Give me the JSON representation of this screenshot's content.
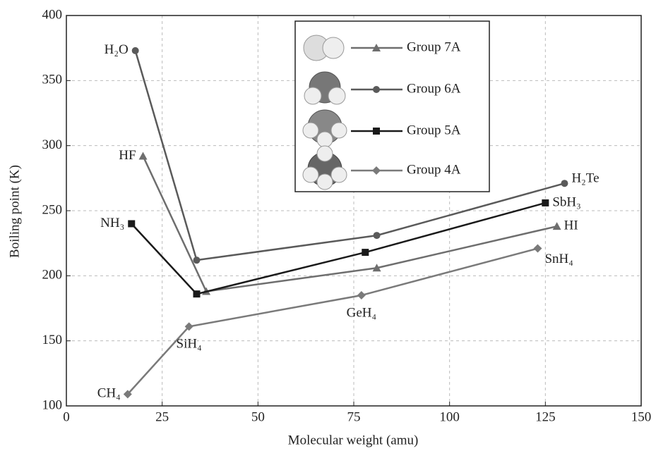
{
  "chart_data": {
    "type": "line",
    "xlabel": "Molecular weight (amu)",
    "ylabel": "Boiling point (K)",
    "xlim": [
      0,
      150
    ],
    "xticks": [
      0,
      25,
      50,
      75,
      100,
      125,
      150
    ],
    "ylim": [
      100,
      400
    ],
    "yticks": [
      100,
      150,
      200,
      250,
      300,
      350,
      400
    ],
    "grid": true,
    "legend": "upper center",
    "series": [
      {
        "name": "Group 7A",
        "color": "#6e6e6e",
        "marker": "triangle",
        "x": [
          20,
          36.5,
          81,
          128
        ],
        "values": [
          292,
          188,
          206,
          238
        ],
        "point_labels": [
          "HF",
          null,
          null,
          "HI"
        ]
      },
      {
        "name": "Group 6A",
        "color": "#5a5a5a",
        "marker": "circle",
        "x": [
          18,
          34,
          81,
          130
        ],
        "values": [
          373,
          212,
          231,
          271
        ],
        "point_labels": [
          "H₂O",
          null,
          null,
          "H₂Te"
        ]
      },
      {
        "name": "Group 5A",
        "color": "#1a1a1a",
        "marker": "square",
        "x": [
          17,
          34,
          78,
          125
        ],
        "values": [
          240,
          186,
          218,
          256
        ],
        "point_labels": [
          "NH₃",
          null,
          null,
          "SbH₃"
        ]
      },
      {
        "name": "Group 4A",
        "color": "#7a7a7a",
        "marker": "diamond",
        "x": [
          16,
          32,
          77,
          123
        ],
        "values": [
          109,
          161,
          185,
          221
        ],
        "point_labels": [
          "CH₄",
          "SiH₄",
          "GeH₄",
          "SnH₄"
        ]
      }
    ]
  }
}
